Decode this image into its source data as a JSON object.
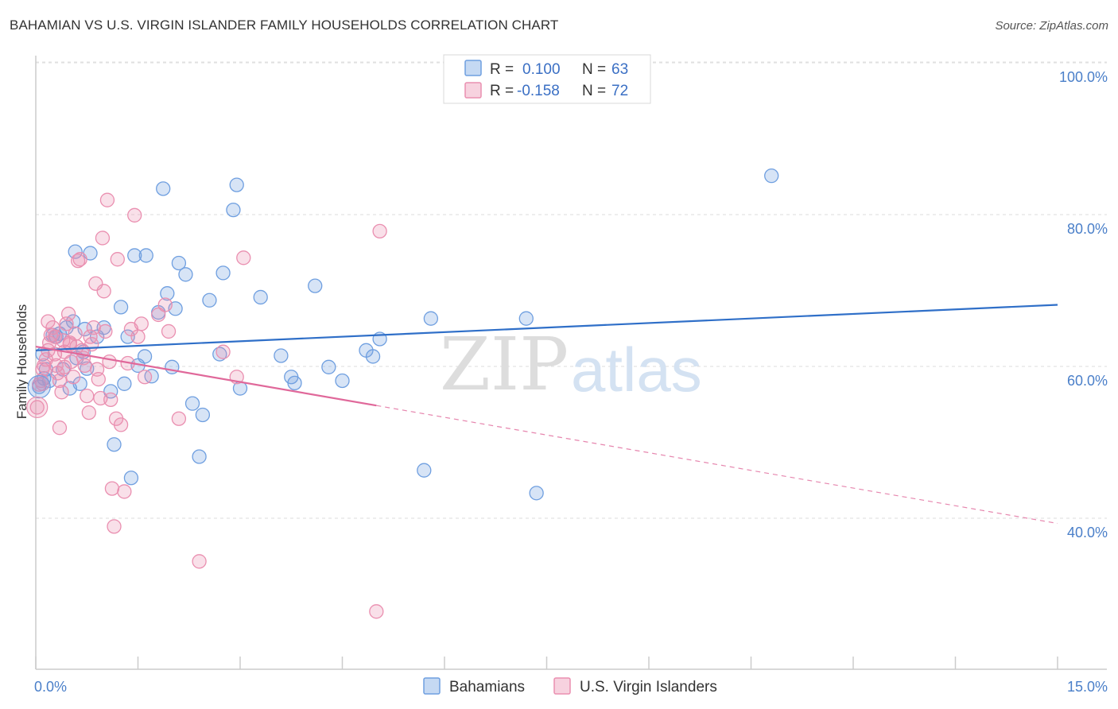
{
  "title": "BAHAMIAN VS U.S. VIRGIN ISLANDER FAMILY HOUSEHOLDS CORRELATION CHART",
  "source": "Source: ZipAtlas.com",
  "watermark": {
    "zip": "ZIP",
    "atlas": "atlas"
  },
  "colors": {
    "blue": "#6f9fe0",
    "blue_fill": "rgba(111,159,224,0.28)",
    "blue_line": "#2f6fc8",
    "pink": "#ea8fb0",
    "pink_fill": "rgba(234,143,176,0.28)",
    "pink_line": "#e0689a"
  },
  "legend": {
    "r_label": "R =",
    "n_label": "N =",
    "rows": [
      {
        "r": "0.100",
        "n": "63"
      },
      {
        "r": "-0.158",
        "n": "72"
      }
    ]
  },
  "chart_data": {
    "type": "scatter",
    "ylabel": "Family Households",
    "xlim": [
      0,
      15
    ],
    "ylim": [
      22,
      104
    ],
    "x_ticks": [
      {
        "value": 0,
        "label": "0.0%"
      },
      {
        "value": 15,
        "label": "15.0%"
      }
    ],
    "y_ticks": [
      {
        "value": 100,
        "label": "100.0%"
      },
      {
        "value": 80,
        "label": "80.0%"
      },
      {
        "value": 60,
        "label": "60.0%"
      },
      {
        "value": 40,
        "label": "40.0%"
      }
    ],
    "series": [
      {
        "name": "Bahamians",
        "r": 0.1,
        "n": 63,
        "trend": {
          "x0": 0,
          "y0": 64.0,
          "x1": 15,
          "y1": 70.0,
          "solid_to": 15
        },
        "points": [
          [
            0.05,
            59.2
          ],
          [
            0.1,
            63.5
          ],
          [
            0.15,
            61.5
          ],
          [
            0.2,
            60.0
          ],
          [
            0.25,
            66.0
          ],
          [
            0.3,
            65.8
          ],
          [
            0.35,
            66.2
          ],
          [
            0.4,
            61.5
          ],
          [
            0.45,
            67.0
          ],
          [
            0.5,
            59.0
          ],
          [
            0.55,
            67.8
          ],
          [
            0.6,
            63.0
          ],
          [
            0.65,
            59.6
          ],
          [
            0.7,
            63.8
          ],
          [
            0.75,
            61.6
          ],
          [
            0.8,
            76.8
          ],
          [
            0.9,
            65.8
          ],
          [
            1.0,
            67.0
          ],
          [
            1.1,
            58.6
          ],
          [
            1.15,
            51.6
          ],
          [
            1.25,
            69.7
          ],
          [
            1.3,
            59.6
          ],
          [
            1.35,
            65.8
          ],
          [
            1.4,
            47.2
          ],
          [
            1.45,
            76.5
          ],
          [
            1.5,
            62.0
          ],
          [
            1.6,
            63.2
          ],
          [
            1.62,
            76.5
          ],
          [
            1.7,
            60.6
          ],
          [
            1.8,
            69.0
          ],
          [
            1.87,
            85.3
          ],
          [
            1.93,
            71.5
          ],
          [
            2.0,
            61.8
          ],
          [
            2.05,
            69.5
          ],
          [
            2.1,
            75.5
          ],
          [
            2.2,
            74.0
          ],
          [
            2.3,
            57.0
          ],
          [
            2.4,
            50.0
          ],
          [
            2.45,
            55.5
          ],
          [
            2.55,
            70.6
          ],
          [
            2.7,
            63.5
          ],
          [
            2.75,
            74.2
          ],
          [
            2.9,
            82.5
          ],
          [
            2.95,
            85.8
          ],
          [
            3.0,
            59.0
          ],
          [
            3.3,
            71.0
          ],
          [
            3.6,
            63.3
          ],
          [
            3.75,
            60.5
          ],
          [
            3.8,
            59.7
          ],
          [
            4.1,
            72.5
          ],
          [
            4.3,
            61.8
          ],
          [
            4.5,
            60.0
          ],
          [
            4.85,
            64.0
          ],
          [
            4.95,
            63.2
          ],
          [
            5.05,
            65.5
          ],
          [
            5.7,
            48.2
          ],
          [
            5.8,
            68.2
          ],
          [
            7.2,
            68.2
          ],
          [
            7.35,
            45.2
          ],
          [
            10.8,
            87.0
          ],
          [
            0.58,
            77.0
          ],
          [
            0.72,
            66.8
          ],
          [
            0.12,
            60.3
          ]
        ]
      },
      {
        "name": "U.S. Virgin Islanders",
        "r": -0.158,
        "n": 72,
        "trend": {
          "x0": 0,
          "y0": 64.5,
          "x1": 15,
          "y1": 41.2,
          "solid_to": 5.0
        },
        "points": [
          [
            0.02,
            56.5
          ],
          [
            0.05,
            59.5
          ],
          [
            0.08,
            60.0
          ],
          [
            0.1,
            61.5
          ],
          [
            0.12,
            62.0
          ],
          [
            0.15,
            62.8
          ],
          [
            0.18,
            64.0
          ],
          [
            0.2,
            65.0
          ],
          [
            0.22,
            66.0
          ],
          [
            0.25,
            67.0
          ],
          [
            0.28,
            63.5
          ],
          [
            0.3,
            62.0
          ],
          [
            0.32,
            61.0
          ],
          [
            0.35,
            60.0
          ],
          [
            0.38,
            58.5
          ],
          [
            0.4,
            65.3
          ],
          [
            0.42,
            63.8
          ],
          [
            0.45,
            67.5
          ],
          [
            0.48,
            68.8
          ],
          [
            0.5,
            65.0
          ],
          [
            0.52,
            62.5
          ],
          [
            0.55,
            60.5
          ],
          [
            0.58,
            66.2
          ],
          [
            0.6,
            64.5
          ],
          [
            0.62,
            75.8
          ],
          [
            0.65,
            76.0
          ],
          [
            0.68,
            64.0
          ],
          [
            0.7,
            63.0
          ],
          [
            0.72,
            62.0
          ],
          [
            0.75,
            58.0
          ],
          [
            0.78,
            55.8
          ],
          [
            0.8,
            65.8
          ],
          [
            0.82,
            64.8
          ],
          [
            0.85,
            67.0
          ],
          [
            0.88,
            72.8
          ],
          [
            0.9,
            61.5
          ],
          [
            0.92,
            60.2
          ],
          [
            0.95,
            57.7
          ],
          [
            0.98,
            78.8
          ],
          [
            1.0,
            71.8
          ],
          [
            1.02,
            66.5
          ],
          [
            1.05,
            83.8
          ],
          [
            1.08,
            62.5
          ],
          [
            1.1,
            57.5
          ],
          [
            1.12,
            45.8
          ],
          [
            1.15,
            40.8
          ],
          [
            1.18,
            55.0
          ],
          [
            1.2,
            76.0
          ],
          [
            1.25,
            54.2
          ],
          [
            1.3,
            45.4
          ],
          [
            1.35,
            62.3
          ],
          [
            1.4,
            66.8
          ],
          [
            1.45,
            81.8
          ],
          [
            1.5,
            65.8
          ],
          [
            1.55,
            67.5
          ],
          [
            1.6,
            60.5
          ],
          [
            1.8,
            68.7
          ],
          [
            1.9,
            70.0
          ],
          [
            1.95,
            66.5
          ],
          [
            2.1,
            55.0
          ],
          [
            2.4,
            36.2
          ],
          [
            2.75,
            63.8
          ],
          [
            2.95,
            60.5
          ],
          [
            3.05,
            76.2
          ],
          [
            5.05,
            79.7
          ],
          [
            5.0,
            29.6
          ],
          [
            0.18,
            67.8
          ],
          [
            0.35,
            53.8
          ],
          [
            0.42,
            61.8
          ],
          [
            0.28,
            65.8
          ],
          [
            0.1,
            59.6
          ],
          [
            0.5,
            64.8
          ]
        ]
      }
    ]
  }
}
